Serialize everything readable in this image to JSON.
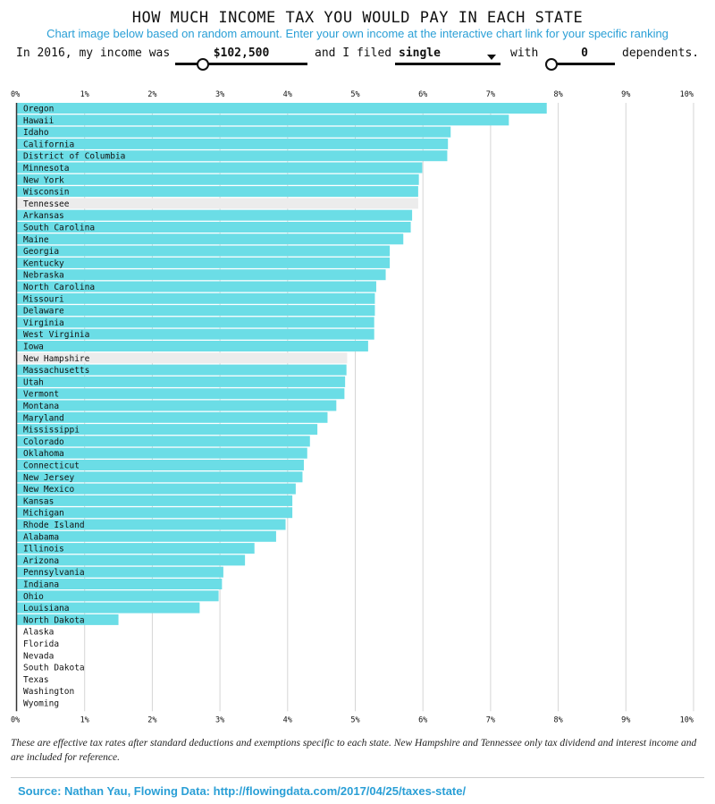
{
  "header": {
    "title": "HOW MUCH INCOME TAX YOU WOULD PAY IN EACH STATE",
    "subtitle": "Chart image below based on random amount. Enter your own income at the interactive chart link for your specific ranking"
  },
  "controls": {
    "prefix": "In 2016, my income was",
    "income_value": "$102,500",
    "filed_label": "and I filed",
    "filing_status": "single",
    "with_label": "with",
    "dependents_value": "0",
    "dependents_label": "dependents.",
    "income_slider_level": 0.2,
    "dependents_slider_level": 0.0
  },
  "colors": {
    "bar": "#6bdde6",
    "reference_bar": "#ececec",
    "accent": "#2a9fd6",
    "grid": "#d5d5d5"
  },
  "chart_data": {
    "type": "bar",
    "orientation": "horizontal",
    "xlim": [
      0,
      10
    ],
    "x_ticks": [
      "0%",
      "1%",
      "2%",
      "3%",
      "4%",
      "5%",
      "6%",
      "7%",
      "8%",
      "9%",
      "10%"
    ],
    "grid": true,
    "reference_states": [
      "Tennessee",
      "New Hampshire"
    ],
    "categories": [
      "Oregon",
      "Hawaii",
      "Idaho",
      "California",
      "District of Columbia",
      "Minnesota",
      "New York",
      "Wisconsin",
      "Tennessee",
      "Arkansas",
      "South Carolina",
      "Maine",
      "Georgia",
      "Kentucky",
      "Nebraska",
      "North Carolina",
      "Missouri",
      "Delaware",
      "Virginia",
      "West Virginia",
      "Iowa",
      "New Hampshire",
      "Massachusetts",
      "Utah",
      "Vermont",
      "Montana",
      "Maryland",
      "Mississippi",
      "Colorado",
      "Oklahoma",
      "Connecticut",
      "New Jersey",
      "New Mexico",
      "Kansas",
      "Michigan",
      "Rhode Island",
      "Alabama",
      "Illinois",
      "Arizona",
      "Pennsylvania",
      "Indiana",
      "Ohio",
      "Louisiana",
      "North Dakota",
      "Alaska",
      "Florida",
      "Nevada",
      "South Dakota",
      "Texas",
      "Washington",
      "Wyoming"
    ],
    "values": [
      7.83,
      7.27,
      6.41,
      6.37,
      6.36,
      5.99,
      5.94,
      5.93,
      5.93,
      5.84,
      5.82,
      5.71,
      5.51,
      5.51,
      5.45,
      5.31,
      5.29,
      5.29,
      5.28,
      5.28,
      5.19,
      4.88,
      4.87,
      4.85,
      4.84,
      4.72,
      4.59,
      4.44,
      4.33,
      4.29,
      4.24,
      4.22,
      4.12,
      4.07,
      4.07,
      3.97,
      3.83,
      3.51,
      3.37,
      3.05,
      3.03,
      2.98,
      2.7,
      1.5,
      0,
      0,
      0,
      0,
      0,
      0,
      0
    ]
  },
  "footer": {
    "note": "These are effective tax rates after standard deductions and exemptions specific to each state. New Hampshire and Tennessee only tax dividend and interest income and are included for reference.",
    "source": "Source: Nathan Yau, Flowing Data: http://flowingdata.com/2017/04/25/taxes-state/"
  }
}
